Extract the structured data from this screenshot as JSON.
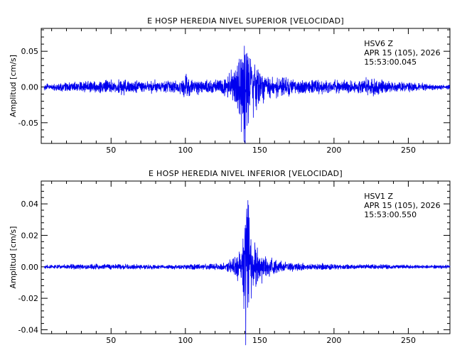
{
  "chart_data": [
    {
      "type": "line",
      "title": "E HOSP HEREDIA NIVEL SUPERIOR [VELOCIDAD]",
      "xlabel": "",
      "ylabel": "Amplitud [cm/s]",
      "xlim": [
        3,
        278
      ],
      "ylim": [
        -0.079,
        0.082
      ],
      "x_ticks": [
        50,
        100,
        150,
        200,
        250
      ],
      "x_tick_labels": [
        "50",
        "100",
        "150",
        "200",
        "250"
      ],
      "y_ticks": [
        -0.05,
        0.0,
        0.05
      ],
      "y_tick_labels": [
        "-0.05",
        "0.00",
        "0.05"
      ],
      "station": "HSV6   Z",
      "date": "APR 15 (105), 2026",
      "time": "15:53:00.045",
      "grid": false,
      "series": [
        {
          "color": "#0000ee",
          "envelope": {
            "t": [
              5,
              20,
              40,
              50,
              60,
              70,
              80,
              95,
              100,
              105,
              115,
              125,
              132,
              136,
              139,
              140.5,
              141.5,
              143,
              145,
              147,
              150,
              155,
              160,
              170,
              180,
              200,
              215,
              225,
              235,
              250,
              265,
              278
            ],
            "amplitude": [
              0.004,
              0.006,
              0.008,
              0.009,
              0.01,
              0.007,
              0.008,
              0.008,
              0.016,
              0.01,
              0.008,
              0.01,
              0.02,
              0.04,
              0.065,
              0.08,
              0.078,
              0.06,
              0.045,
              0.032,
              0.022,
              0.016,
              0.013,
              0.011,
              0.009,
              0.009,
              0.008,
              0.013,
              0.008,
              0.006,
              0.004,
              0.003
            ]
          }
        }
      ]
    },
    {
      "type": "line",
      "title": "E HOSP HEREDIA NIVEL INFERIOR [VELOCIDAD]",
      "xlabel": "",
      "ylabel": "Amplitud [cm/s]",
      "xlim": [
        3,
        278
      ],
      "ylim": [
        -0.0425,
        0.0545
      ],
      "x_ticks": [
        50,
        100,
        150,
        200,
        250
      ],
      "x_tick_labels": [
        "50",
        "100",
        "150",
        "200",
        "250"
      ],
      "y_ticks": [
        -0.04,
        -0.02,
        0.0,
        0.02,
        0.04
      ],
      "y_tick_labels": [
        "-0.04",
        "-0.02",
        "0.00",
        "0.02",
        "0.04"
      ],
      "station": "HSV1   Z",
      "date": "APR 15 (105), 2026",
      "time": "15:53:00.550",
      "grid": false,
      "series": [
        {
          "color": "#0000ee",
          "envelope": {
            "t": [
              5,
              30,
              60,
              90,
              110,
              125,
              130,
              133,
              137,
              139,
              140.2,
              141,
              142.5,
              145,
              148,
              152,
              158,
              165,
              180,
              200,
              230,
              260,
              278
            ],
            "amplitude": [
              0.001,
              0.0015,
              0.0015,
              0.0012,
              0.0015,
              0.002,
              0.004,
              0.006,
              0.009,
              0.02,
              0.053,
              0.045,
              0.03,
              0.02,
              0.013,
              0.008,
              0.005,
              0.003,
              0.002,
              0.0015,
              0.0012,
              0.001,
              0.001
            ]
          }
        }
      ]
    }
  ]
}
